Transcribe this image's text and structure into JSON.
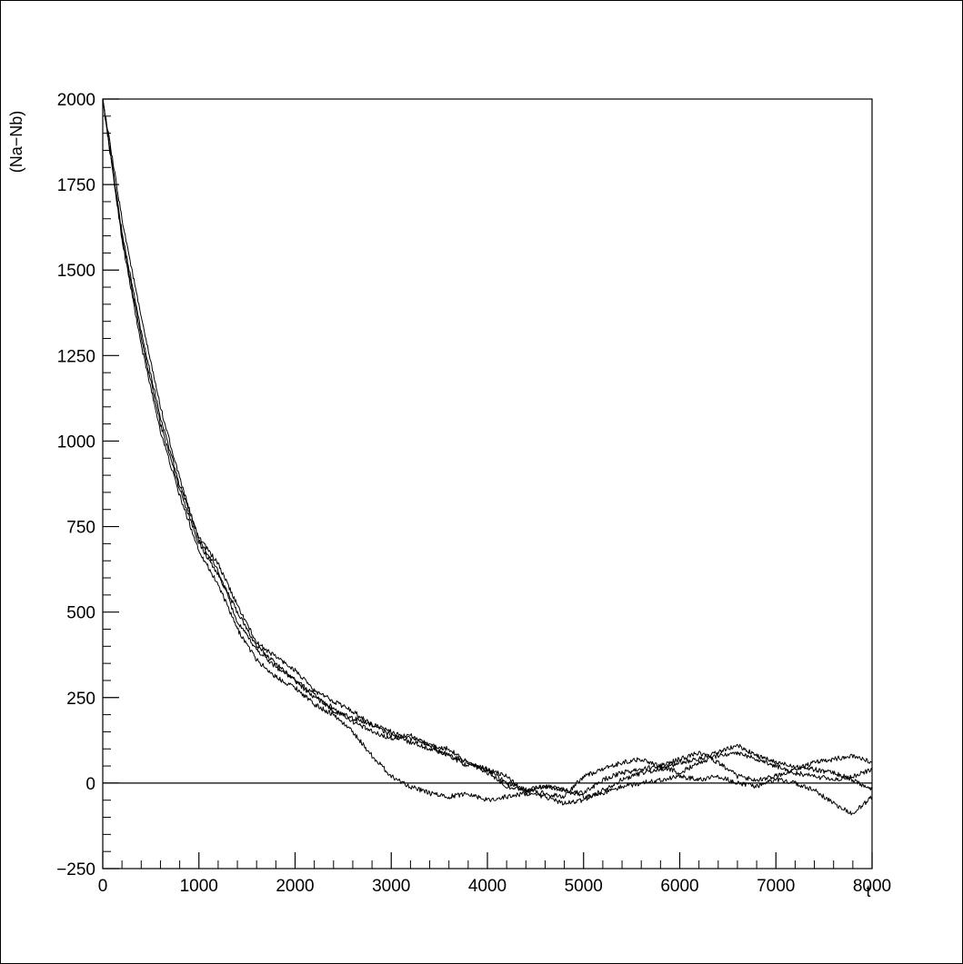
{
  "chart_data": {
    "type": "line",
    "title": "",
    "xlabel": "t",
    "ylabel": "(Na−Nb)",
    "xlim": [
      0,
      8000
    ],
    "ylim": [
      -250,
      2000
    ],
    "x_ticks": [
      0,
      1000,
      2000,
      3000,
      4000,
      5000,
      6000,
      7000,
      8000
    ],
    "x_tick_labels": [
      "0",
      "1000",
      "2000",
      "3000",
      "4000",
      "5000",
      "6000",
      "7000",
      "8000"
    ],
    "y_ticks": [
      -250,
      0,
      250,
      500,
      750,
      1000,
      1250,
      1500,
      1750,
      2000
    ],
    "y_tick_labels": [
      "−250",
      "0",
      "250",
      "500",
      "750",
      "1000",
      "1250",
      "1500",
      "1750",
      "2000"
    ],
    "grid": false,
    "legend": "none",
    "reference_line": {
      "y": 0
    },
    "line_color": "#000000",
    "x": [
      0,
      200,
      400,
      600,
      800,
      1000,
      1200,
      1400,
      1600,
      1800,
      2000,
      2200,
      2400,
      2600,
      2800,
      3000,
      3200,
      3400,
      3600,
      3800,
      4000,
      4200,
      4400,
      4600,
      4800,
      5000,
      5200,
      5400,
      5600,
      5800,
      6000,
      6200,
      6400,
      6600,
      6800,
      7000,
      7200,
      7400,
      7600,
      7800,
      8000
    ],
    "series": [
      {
        "values": [
          2000,
          1600,
          1300,
          1050,
          860,
          700,
          610,
          500,
          400,
          350,
          300,
          250,
          220,
          180,
          150,
          130,
          140,
          110,
          80,
          60,
          40,
          20,
          -30,
          -40,
          -60,
          -50,
          -20,
          10,
          30,
          40,
          60,
          70,
          90,
          110,
          80,
          60,
          50,
          40,
          30,
          10,
          -20
        ]
      },
      {
        "values": [
          2000,
          1590,
          1280,
          1030,
          840,
          680,
          580,
          450,
          360,
          310,
          280,
          230,
          200,
          150,
          80,
          20,
          -10,
          -30,
          -40,
          -30,
          -50,
          -40,
          -30,
          -10,
          -20,
          -30,
          10,
          30,
          40,
          50,
          70,
          90,
          60,
          20,
          10,
          20,
          40,
          60,
          70,
          80,
          60
        ]
      },
      {
        "values": [
          2000,
          1610,
          1320,
          1070,
          870,
          720,
          640,
          520,
          410,
          370,
          330,
          270,
          240,
          210,
          170,
          140,
          120,
          100,
          80,
          50,
          40,
          0,
          -20,
          -10,
          -20,
          -40,
          -30,
          -10,
          0,
          10,
          20,
          10,
          20,
          0,
          -10,
          10,
          0,
          -20,
          -60,
          -90,
          -40
        ]
      },
      {
        "values": [
          2000,
          1650,
          1360,
          1100,
          890,
          710,
          620,
          470,
          390,
          340,
          300,
          260,
          210,
          190,
          170,
          150,
          130,
          110,
          100,
          60,
          30,
          -10,
          -20,
          -30,
          -40,
          20,
          40,
          60,
          70,
          50,
          30,
          60,
          80,
          90,
          70,
          50,
          30,
          20,
          10,
          20,
          40
        ]
      }
    ]
  }
}
